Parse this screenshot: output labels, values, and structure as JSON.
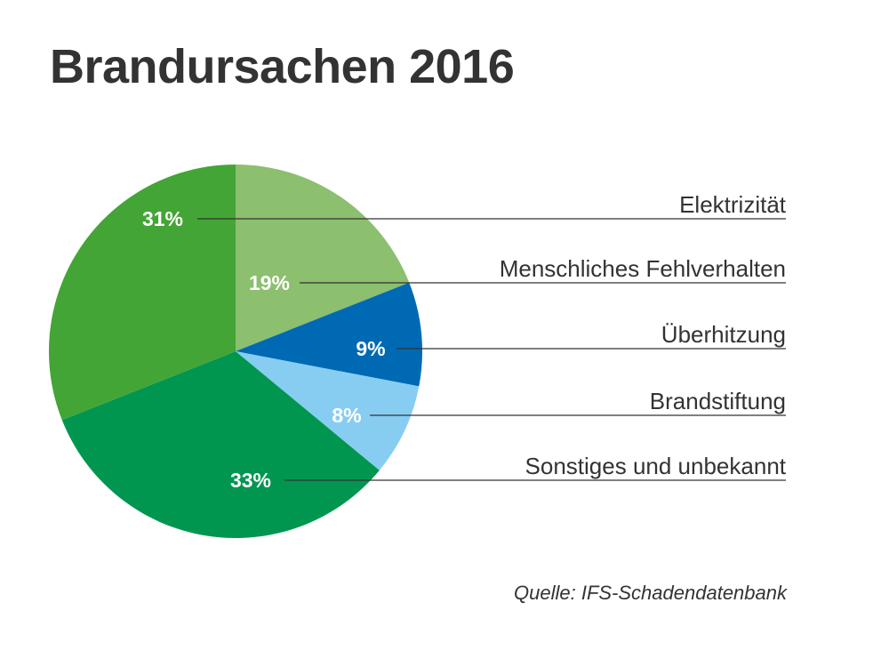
{
  "chart_data": {
    "type": "pie",
    "title": "Brandursachen 2016",
    "categories": [
      "Elektrizität",
      "Menschliches Fehlverhalten",
      "Überhitzung",
      "Brandstiftung",
      "Sonstiges und unbekannt"
    ],
    "values": [
      31,
      19,
      9,
      8,
      33
    ],
    "value_labels": [
      "31%",
      "19%",
      "9%",
      "8%",
      "33%"
    ],
    "colors": [
      "#43a535",
      "#8cbf6e",
      "#0069b4",
      "#87cdf2",
      "#009650"
    ],
    "slice_order_clockwise_from_top": [
      "Menschliches Fehlverhalten",
      "Überhitzung",
      "Brandstiftung",
      "Sonstiges und unbekannt",
      "Elektrizität"
    ],
    "legend_placement": "right",
    "source": "Quelle: IFS-Schadendatenbank"
  }
}
